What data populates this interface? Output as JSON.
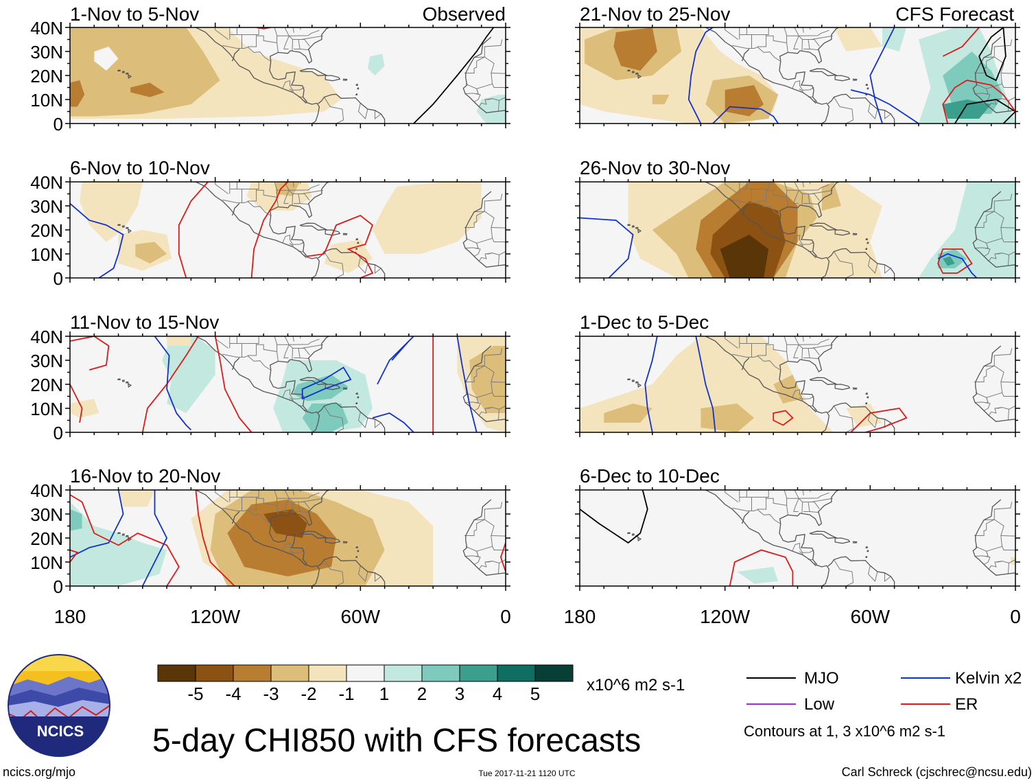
{
  "title": "5-day CHI850 with CFS forecasts",
  "footer": {
    "left": "ncics.org/mjo",
    "center": "Tue 2017-11-21 1120 UTC",
    "right": "Carl Schreck (cjschrec@ncsu.edu)"
  },
  "logo": {
    "text": "NCICS"
  },
  "colorbar": {
    "units": "x10^6 m2 s-1",
    "labels": [
      "-5",
      "-4",
      "-3",
      "-2",
      "-1",
      "1",
      "2",
      "3",
      "4",
      "5"
    ],
    "colors": [
      "#5a3508",
      "#8b5213",
      "#b97d32",
      "#dcbd79",
      "#f4e4bd",
      "#f5f5f5",
      "#c2e8e0",
      "#7ecbbd",
      "#3c9e8d",
      "#0f6e61",
      "#073f36"
    ]
  },
  "legend": {
    "items": [
      {
        "label": "MJO",
        "color": "#000000"
      },
      {
        "label": "Kelvin x2",
        "color": "#1030d0"
      },
      {
        "label": "Low",
        "color": "#9b30d0"
      },
      {
        "label": "ER",
        "color": "#e01818"
      }
    ],
    "note": "Contours at 1, 3 x10^6 m2 s-1"
  },
  "chart_data": {
    "type": "heatmap",
    "variable": "CHI850 (850-hPa velocity potential)",
    "x_axis": {
      "labels": [
        "180",
        "120W",
        "60W",
        "0"
      ],
      "range": [
        -180,
        0
      ]
    },
    "y_axis": {
      "labels": [
        "40N",
        "30N",
        "20N",
        "10N",
        "0"
      ],
      "range": [
        0,
        40
      ]
    },
    "panels": [
      {
        "title": "1-Nov to 5-Nov",
        "tag": "Observed"
      },
      {
        "title": "6-Nov to 10-Nov",
        "tag": ""
      },
      {
        "title": "11-Nov to 15-Nov",
        "tag": ""
      },
      {
        "title": "16-Nov to 20-Nov",
        "tag": ""
      },
      {
        "title": "21-Nov to 25-Nov",
        "tag": "CFS Forecast"
      },
      {
        "title": "26-Nov to 30-Nov",
        "tag": ""
      },
      {
        "title": "1-Dec to 5-Dec",
        "tag": ""
      },
      {
        "title": "6-Dec to 10-Dec",
        "tag": ""
      }
    ]
  }
}
